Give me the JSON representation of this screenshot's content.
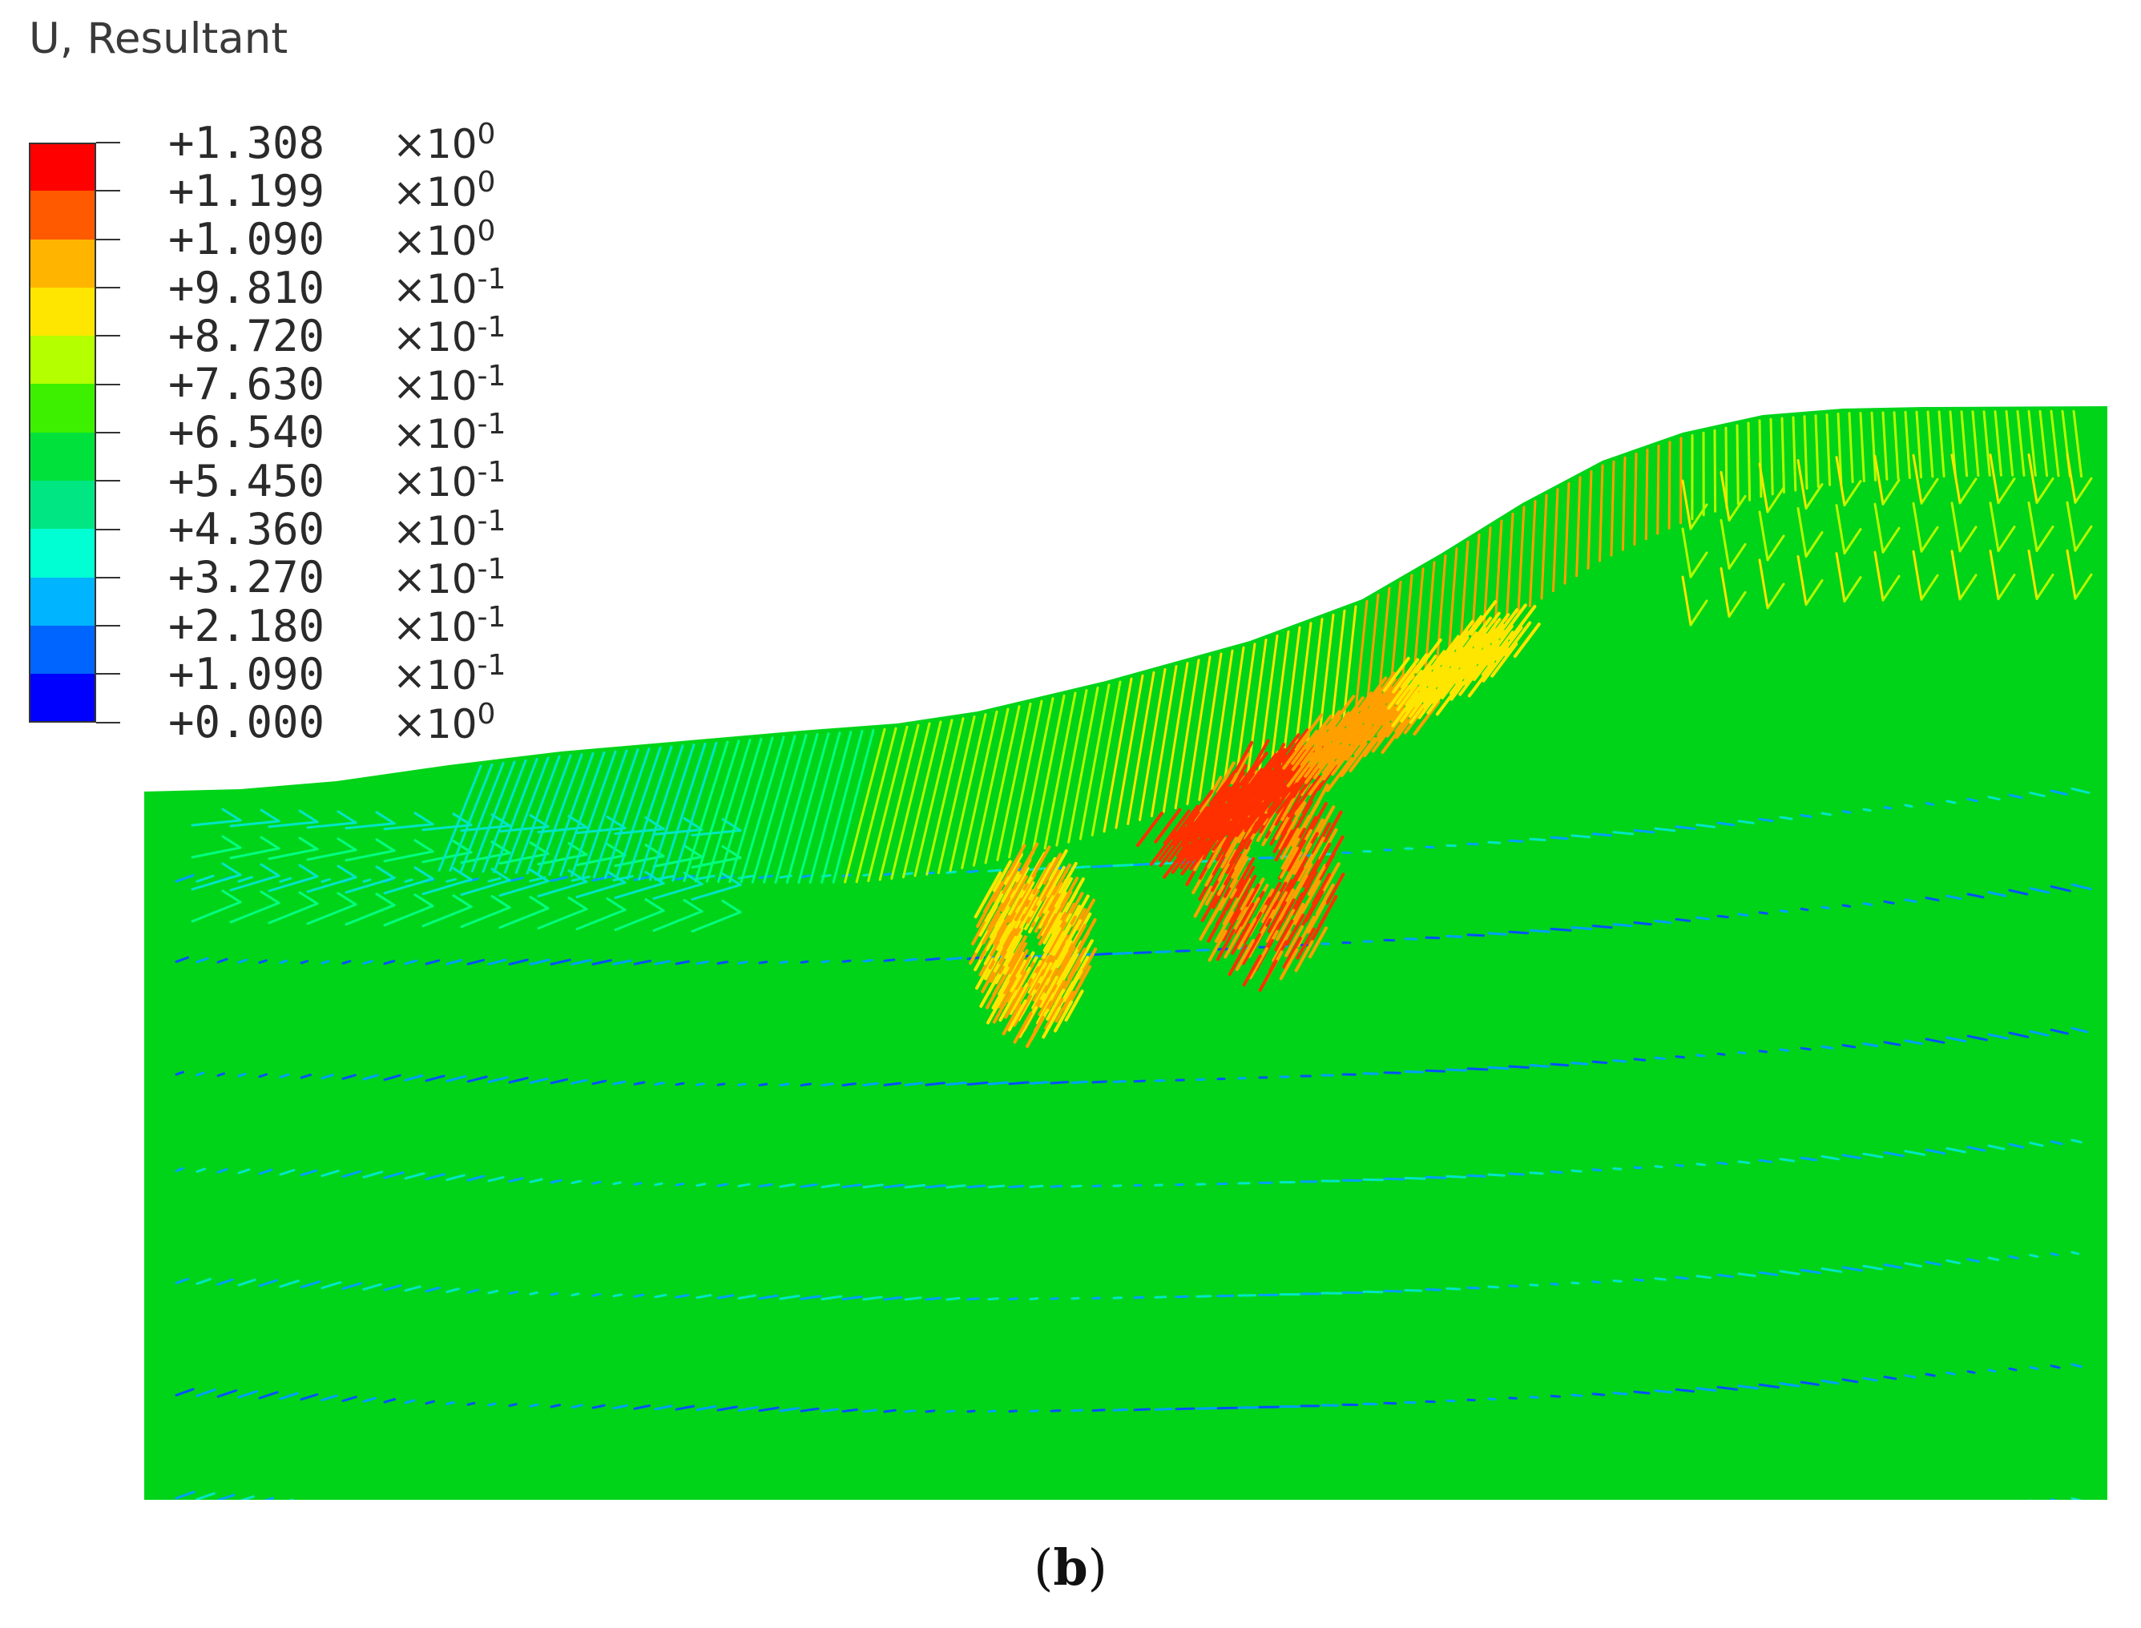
{
  "legend": {
    "title": "U, Resultant",
    "entries": [
      {
        "mantissa": "+1.308",
        "base": "×10",
        "exponent": "0"
      },
      {
        "mantissa": "+1.199",
        "base": "×10",
        "exponent": "0"
      },
      {
        "mantissa": "+1.090",
        "base": "×10",
        "exponent": "0"
      },
      {
        "mantissa": "+9.810",
        "base": "×10",
        "exponent": "-1"
      },
      {
        "mantissa": "+8.720",
        "base": "×10",
        "exponent": "-1"
      },
      {
        "mantissa": "+7.630",
        "base": "×10",
        "exponent": "-1"
      },
      {
        "mantissa": "+6.540",
        "base": "×10",
        "exponent": "-1"
      },
      {
        "mantissa": "+5.450",
        "base": "×10",
        "exponent": "-1"
      },
      {
        "mantissa": "+4.360",
        "base": "×10",
        "exponent": "-1"
      },
      {
        "mantissa": "+3.270",
        "base": "×10",
        "exponent": "-1"
      },
      {
        "mantissa": "+2.180",
        "base": "×10",
        "exponent": "-1"
      },
      {
        "mantissa": "+1.090",
        "base": "×10",
        "exponent": "-1"
      },
      {
        "mantissa": "+0.000",
        "base": "×10",
        "exponent": "0"
      }
    ],
    "colors": [
      "#ff0000",
      "#ff5a00",
      "#ffb400",
      "#ffe600",
      "#b4ff00",
      "#3cf000",
      "#00e13c",
      "#00e682",
      "#00ffd2",
      "#00b4ff",
      "#0064ff",
      "#0000ff"
    ]
  },
  "model": {
    "background_color": "#00d419",
    "arrow_colors": [
      "#0050ff",
      "#00a0ff",
      "#00e6c8",
      "#00ff80",
      "#b4ff00",
      "#ffe600",
      "#ffa000",
      "#ff3000"
    ]
  },
  "caption": {
    "open": "(",
    "label": "b",
    "close": ")"
  }
}
